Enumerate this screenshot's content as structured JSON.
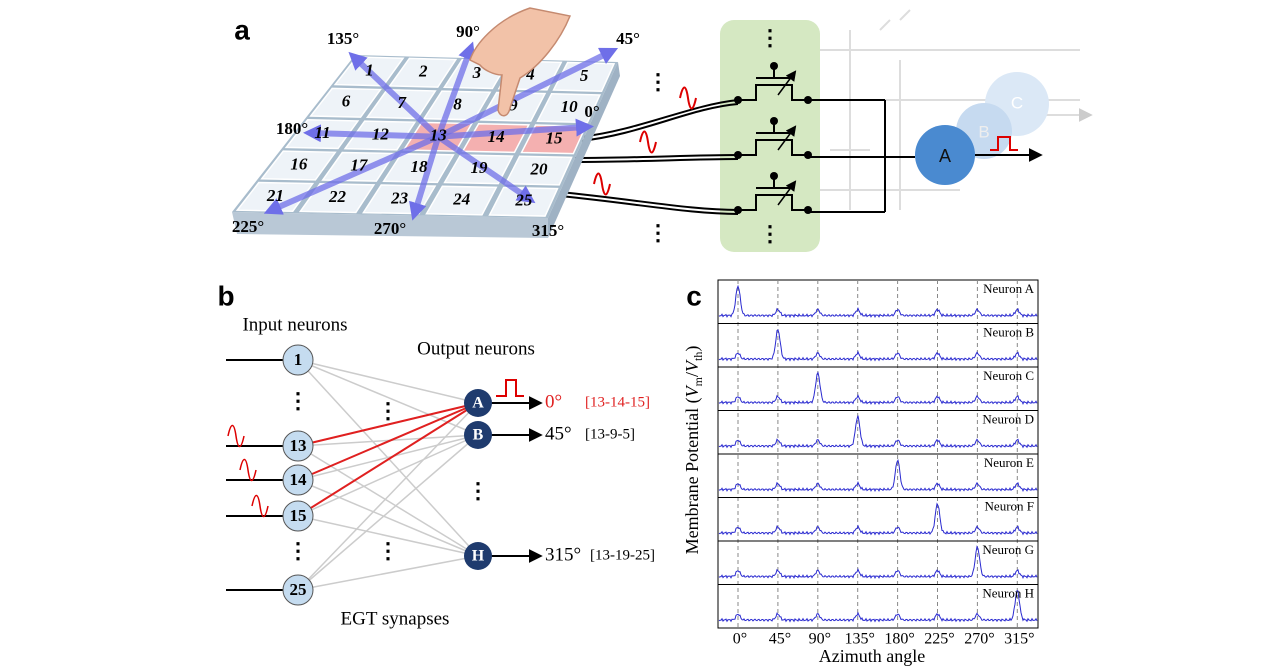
{
  "panel_a": {
    "label": "a",
    "angles": [
      "135°",
      "90°",
      "45°",
      "0°",
      "180°",
      "225°",
      "270°",
      "315°"
    ],
    "cells": [
      "1",
      "2",
      "3",
      "4",
      "5",
      "6",
      "7",
      "8",
      "9",
      "10",
      "11",
      "12",
      "13",
      "14",
      "15",
      "16",
      "17",
      "18",
      "19",
      "20",
      "21",
      "22",
      "23",
      "24",
      "25"
    ],
    "neurons": [
      "A",
      "B",
      "C"
    ]
  },
  "panel_b": {
    "label": "b",
    "input_title": "Input neurons",
    "output_title": "Output neurons",
    "synapse_title": "EGT synapses",
    "inputs": [
      "1",
      "13",
      "14",
      "15",
      "25"
    ],
    "outputs": [
      {
        "name": "A",
        "angle": "0°",
        "path": "[13-14-15]"
      },
      {
        "name": "B",
        "angle": "45°",
        "path": "[13-9-5]"
      },
      {
        "name": "H",
        "angle": "315°",
        "path": "[13-19-25]"
      }
    ]
  },
  "panel_c": {
    "label": "c",
    "neurons": [
      "Neuron A",
      "Neuron B",
      "Neuron C",
      "Neuron D",
      "Neuron E",
      "Neuron F",
      "Neuron G",
      "Neuron H"
    ],
    "xticks": [
      "0°",
      "45°",
      "90°",
      "135°",
      "180°",
      "225°",
      "270°",
      "315°"
    ],
    "xlabel": "Azimuth angle",
    "ylabel_parts": [
      "Membrane Potential (",
      "V",
      "m",
      "/",
      "V",
      "th",
      ")"
    ]
  }
}
